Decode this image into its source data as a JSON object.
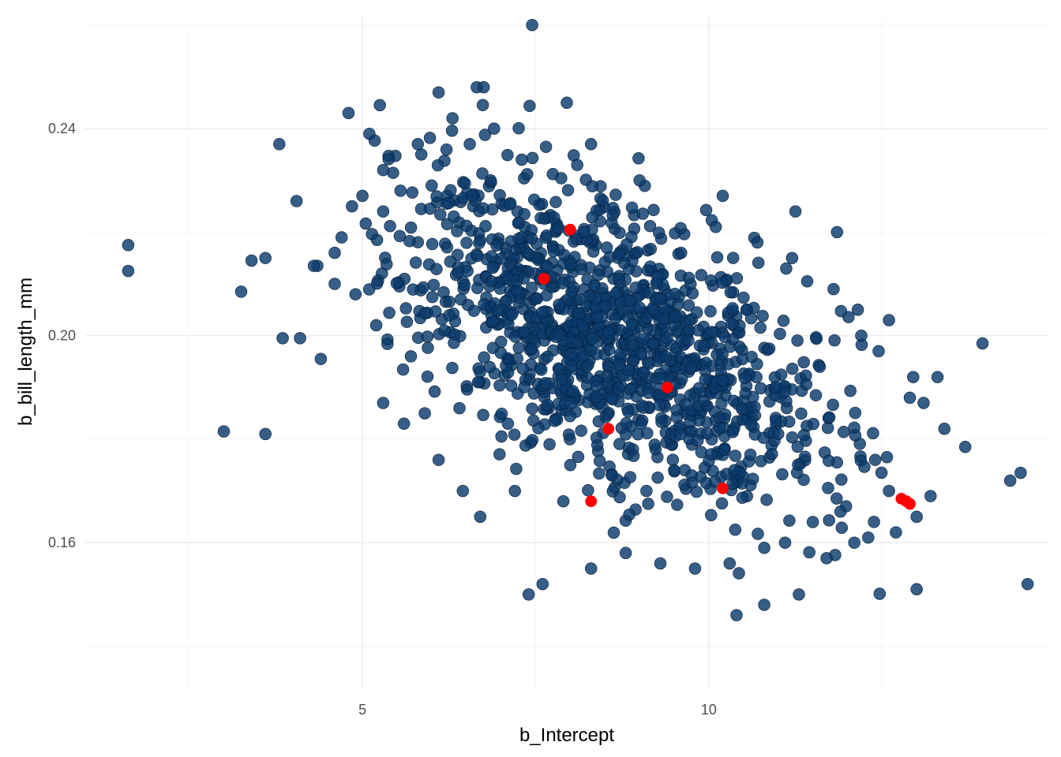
{
  "chart_data": {
    "type": "scatter",
    "title": "",
    "xlabel": "b_Intercept",
    "ylabel": "b_bill_length_mm",
    "xlim": [
      1.0,
      14.9
    ],
    "ylim": [
      0.132,
      0.2615
    ],
    "x_ticks": [
      5,
      10
    ],
    "y_ticks": [
      0.16,
      0.2,
      0.24
    ],
    "x_tick_labels": [
      "5",
      "10"
    ],
    "y_tick_labels": [
      "0.16",
      "0.20",
      "0.24"
    ],
    "grid": true,
    "legend": "none",
    "colors": {
      "main": "#0b3a6b",
      "main_stroke": "#051f3d",
      "highlight": "#ff0000"
    },
    "series": [
      {
        "values_note_free": true,
        "x": [
          1.62,
          1.62,
          3.0,
          3.25,
          3.6,
          3.6,
          3.85,
          4.05,
          4.35,
          4.4,
          4.8,
          5.1,
          5.3,
          5.55,
          5.85,
          6.1,
          6.3,
          6.65,
          6.75,
          6.9,
          7.45,
          7.95,
          8.3,
          8.1,
          7.3,
          6.85,
          6.55,
          6.0,
          5.8,
          5.3,
          5.0,
          4.85,
          4.7,
          4.6,
          4.3,
          4.1,
          3.8,
          3.4,
          9.0,
          10.2,
          11.25,
          11.85,
          12.15,
          12.45,
          12.6,
          12.95,
          13.1,
          13.4,
          13.7,
          13.95,
          14.35,
          14.5,
          14.6,
          13.0,
          12.6,
          12.4,
          12.1,
          11.7,
          11.3,
          10.8,
          10.4,
          9.8,
          9.3,
          8.8,
          8.3,
          7.9,
          7.6,
          7.4,
          7.2,
          6.7,
          6.45,
          6.1,
          5.9,
          5.6,
          5.3,
          10.3,
          10.8,
          11.1,
          11.5,
          11.9,
          12.3,
          12.7,
          13.0,
          13.2,
          11.0,
          10.6,
          9.5,
          9.1,
          8.6,
          8.0,
          7.7,
          7.1,
          6.4,
          5.7,
          5.2,
          4.9,
          4.6,
          9.6,
          10.1,
          10.7,
          11.2,
          11.8,
          12.2,
          13.3,
          12.9,
          11.6,
          9.2,
          8.7,
          8.2
        ],
        "y": [
          0.2175,
          0.2125,
          0.1815,
          0.2085,
          0.215,
          0.181,
          0.1995,
          0.226,
          0.2135,
          0.1955,
          0.243,
          0.239,
          0.232,
          0.228,
          0.235,
          0.247,
          0.242,
          0.248,
          0.248,
          0.24,
          0.26,
          0.245,
          0.237,
          0.233,
          0.234,
          0.23,
          0.237,
          0.229,
          0.237,
          0.224,
          0.227,
          0.225,
          0.219,
          0.216,
          0.2135,
          0.1995,
          0.237,
          0.2145,
          0.23,
          0.227,
          0.224,
          0.22,
          0.205,
          0.197,
          0.203,
          0.192,
          0.187,
          0.182,
          0.1785,
          0.1985,
          0.172,
          0.1735,
          0.152,
          0.151,
          0.17,
          0.176,
          0.16,
          0.157,
          0.15,
          0.148,
          0.146,
          0.155,
          0.156,
          0.158,
          0.155,
          0.168,
          0.152,
          0.15,
          0.17,
          0.165,
          0.17,
          0.176,
          0.185,
          0.183,
          0.187,
          0.156,
          0.159,
          0.16,
          0.164,
          0.166,
          0.161,
          0.162,
          0.165,
          0.169,
          0.181,
          0.177,
          0.174,
          0.17,
          0.173,
          0.175,
          0.179,
          0.183,
          0.186,
          0.196,
          0.202,
          0.208,
          0.21,
          0.216,
          0.221,
          0.218,
          0.215,
          0.209,
          0.2,
          0.192,
          0.188,
          0.194,
          0.205,
          0.211,
          0.22
        ]
      },
      {
        "x": [
          7.62,
          8.0,
          8.55,
          9.4,
          10.2,
          8.3,
          12.78,
          12.85,
          12.9
        ],
        "y": [
          0.211,
          0.2205,
          0.182,
          0.19,
          0.1705,
          0.168,
          0.1685,
          0.168,
          0.1675
        ]
      }
    ]
  }
}
